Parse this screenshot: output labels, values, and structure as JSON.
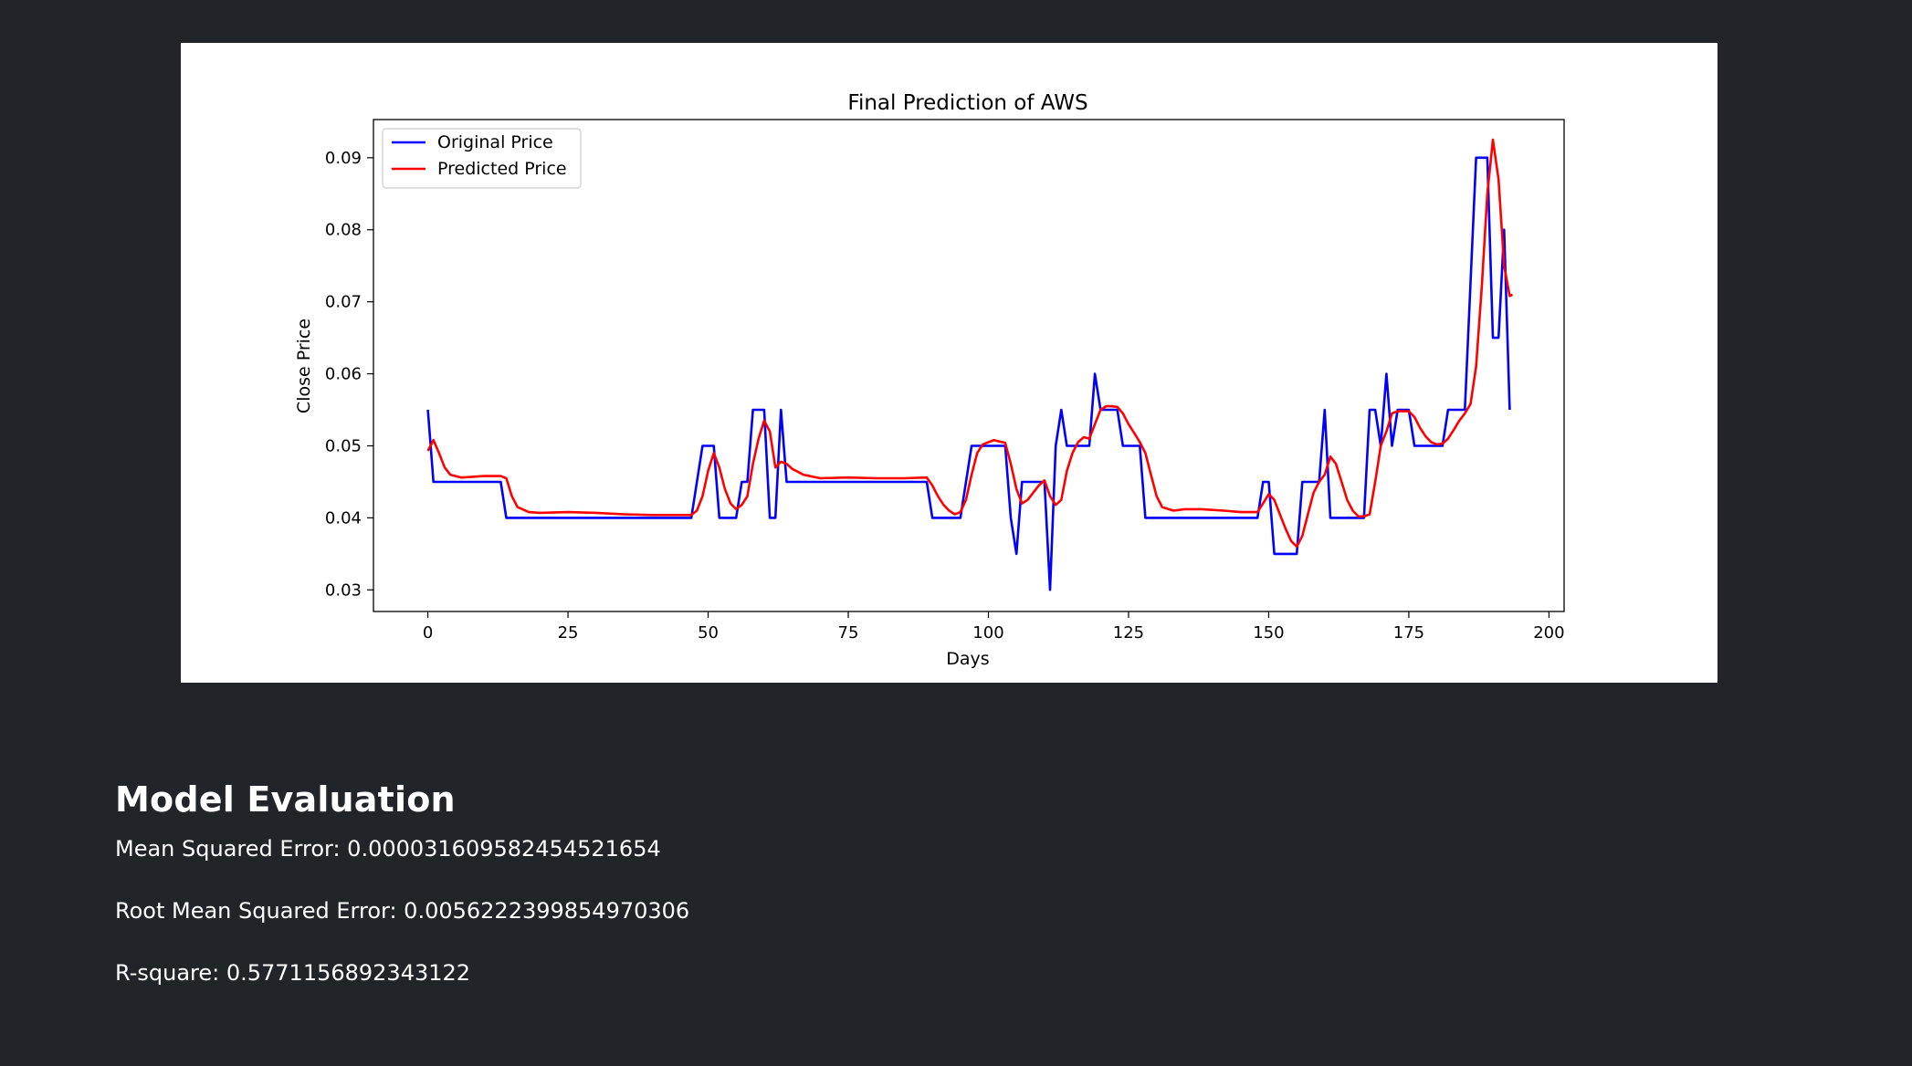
{
  "chart_data": {
    "type": "line",
    "title": "Final Prediction of AWS",
    "xlabel": "Days",
    "ylabel": "Close Price",
    "xlim": [
      -9.7,
      202.7
    ],
    "ylim": [
      0.027,
      0.0953
    ],
    "xticks": [
      0,
      25,
      50,
      75,
      100,
      125,
      150,
      175,
      200
    ],
    "yticks": [
      0.03,
      0.04,
      0.05,
      0.06,
      0.07,
      0.08,
      0.09
    ],
    "ytick_labels": [
      "0.03",
      "0.04",
      "0.05",
      "0.06",
      "0.07",
      "0.08",
      "0.09"
    ],
    "grid": false,
    "legend": "upper-left",
    "series": [
      {
        "name": "Original Price",
        "color": "#0000ff",
        "points": [
          [
            0,
            0.055
          ],
          [
            1,
            0.045
          ],
          [
            13,
            0.045
          ],
          [
            14,
            0.04
          ],
          [
            47,
            0.04
          ],
          [
            49,
            0.05
          ],
          [
            51,
            0.05
          ],
          [
            52,
            0.04
          ],
          [
            55,
            0.04
          ],
          [
            56,
            0.045
          ],
          [
            57,
            0.045
          ],
          [
            58,
            0.055
          ],
          [
            60,
            0.055
          ],
          [
            61,
            0.04
          ],
          [
            62,
            0.04
          ],
          [
            63,
            0.055
          ],
          [
            64,
            0.045
          ],
          [
            89,
            0.045
          ],
          [
            90,
            0.04
          ],
          [
            95,
            0.04
          ],
          [
            97,
            0.05
          ],
          [
            103,
            0.05
          ],
          [
            104,
            0.04
          ],
          [
            105,
            0.035
          ],
          [
            106,
            0.045
          ],
          [
            110,
            0.045
          ],
          [
            111,
            0.03
          ],
          [
            112,
            0.05
          ],
          [
            113,
            0.055
          ],
          [
            114,
            0.05
          ],
          [
            118,
            0.05
          ],
          [
            119,
            0.06
          ],
          [
            120,
            0.055
          ],
          [
            123,
            0.055
          ],
          [
            124,
            0.05
          ],
          [
            127,
            0.05
          ],
          [
            128,
            0.04
          ],
          [
            148,
            0.04
          ],
          [
            149,
            0.045
          ],
          [
            150,
            0.045
          ],
          [
            151,
            0.035
          ],
          [
            155,
            0.035
          ],
          [
            156,
            0.045
          ],
          [
            159,
            0.045
          ],
          [
            160,
            0.055
          ],
          [
            161,
            0.04
          ],
          [
            167,
            0.04
          ],
          [
            168,
            0.055
          ],
          [
            169,
            0.055
          ],
          [
            170,
            0.05
          ],
          [
            171,
            0.06
          ],
          [
            172,
            0.05
          ],
          [
            173,
            0.055
          ],
          [
            175,
            0.055
          ],
          [
            176,
            0.05
          ],
          [
            181,
            0.05
          ],
          [
            182,
            0.055
          ],
          [
            185,
            0.055
          ],
          [
            187,
            0.09
          ],
          [
            189,
            0.09
          ],
          [
            190,
            0.065
          ],
          [
            191,
            0.065
          ],
          [
            192,
            0.08
          ],
          [
            193,
            0.055
          ]
        ]
      },
      {
        "name": "Predicted Price",
        "color": "#ff0000",
        "points": [
          [
            0,
            0.0493
          ],
          [
            1,
            0.0508
          ],
          [
            2,
            0.049
          ],
          [
            3,
            0.047
          ],
          [
            4,
            0.046
          ],
          [
            6,
            0.0456
          ],
          [
            8,
            0.0457
          ],
          [
            10,
            0.0458
          ],
          [
            13,
            0.0458
          ],
          [
            14,
            0.0455
          ],
          [
            15,
            0.043
          ],
          [
            16,
            0.0415
          ],
          [
            18,
            0.0408
          ],
          [
            20,
            0.0407
          ],
          [
            25,
            0.0408
          ],
          [
            30,
            0.0407
          ],
          [
            35,
            0.0405
          ],
          [
            40,
            0.0404
          ],
          [
            47,
            0.0404
          ],
          [
            48,
            0.041
          ],
          [
            49,
            0.043
          ],
          [
            50,
            0.0465
          ],
          [
            51,
            0.049
          ],
          [
            52,
            0.047
          ],
          [
            53,
            0.044
          ],
          [
            54,
            0.042
          ],
          [
            55,
            0.0412
          ],
          [
            56,
            0.0418
          ],
          [
            57,
            0.043
          ],
          [
            58,
            0.0475
          ],
          [
            59,
            0.051
          ],
          [
            60,
            0.0535
          ],
          [
            61,
            0.052
          ],
          [
            62,
            0.047
          ],
          [
            63,
            0.0478
          ],
          [
            64,
            0.0475
          ],
          [
            65,
            0.0468
          ],
          [
            67,
            0.046
          ],
          [
            70,
            0.0455
          ],
          [
            75,
            0.0456
          ],
          [
            80,
            0.0455
          ],
          [
            85,
            0.0455
          ],
          [
            89,
            0.0456
          ],
          [
            90,
            0.0445
          ],
          [
            91,
            0.043
          ],
          [
            92,
            0.0418
          ],
          [
            93,
            0.041
          ],
          [
            94,
            0.0405
          ],
          [
            95,
            0.0408
          ],
          [
            96,
            0.0425
          ],
          [
            97,
            0.046
          ],
          [
            98,
            0.049
          ],
          [
            99,
            0.0502
          ],
          [
            100,
            0.0505
          ],
          [
            101,
            0.0508
          ],
          [
            102,
            0.0506
          ],
          [
            103,
            0.0504
          ],
          [
            104,
            0.0475
          ],
          [
            105,
            0.044
          ],
          [
            106,
            0.042
          ],
          [
            107,
            0.0425
          ],
          [
            108,
            0.0435
          ],
          [
            109,
            0.0445
          ],
          [
            110,
            0.0452
          ],
          [
            111,
            0.043
          ],
          [
            112,
            0.0418
          ],
          [
            113,
            0.0425
          ],
          [
            114,
            0.0465
          ],
          [
            115,
            0.049
          ],
          [
            116,
            0.0505
          ],
          [
            117,
            0.0512
          ],
          [
            118,
            0.051
          ],
          [
            119,
            0.053
          ],
          [
            120,
            0.055
          ],
          [
            121,
            0.0555
          ],
          [
            122,
            0.0555
          ],
          [
            123,
            0.0554
          ],
          [
            124,
            0.0545
          ],
          [
            125,
            0.053
          ],
          [
            126,
            0.0518
          ],
          [
            127,
            0.0505
          ],
          [
            128,
            0.049
          ],
          [
            129,
            0.046
          ],
          [
            130,
            0.043
          ],
          [
            131,
            0.0415
          ],
          [
            133,
            0.041
          ],
          [
            135,
            0.0412
          ],
          [
            138,
            0.0412
          ],
          [
            142,
            0.041
          ],
          [
            145,
            0.0408
          ],
          [
            148,
            0.0408
          ],
          [
            149,
            0.042
          ],
          [
            150,
            0.0433
          ],
          [
            151,
            0.0425
          ],
          [
            152,
            0.0405
          ],
          [
            153,
            0.0385
          ],
          [
            154,
            0.0368
          ],
          [
            155,
            0.036
          ],
          [
            156,
            0.0375
          ],
          [
            157,
            0.0405
          ],
          [
            158,
            0.0435
          ],
          [
            159,
            0.045
          ],
          [
            160,
            0.046
          ],
          [
            161,
            0.0485
          ],
          [
            162,
            0.0475
          ],
          [
            163,
            0.045
          ],
          [
            164,
            0.0425
          ],
          [
            165,
            0.041
          ],
          [
            166,
            0.0402
          ],
          [
            167,
            0.0402
          ],
          [
            168,
            0.0405
          ],
          [
            169,
            0.045
          ],
          [
            170,
            0.05
          ],
          [
            171,
            0.052
          ],
          [
            172,
            0.0545
          ],
          [
            173,
            0.0548
          ],
          [
            174,
            0.0548
          ],
          [
            175,
            0.0548
          ],
          [
            176,
            0.054
          ],
          [
            177,
            0.0525
          ],
          [
            178,
            0.0513
          ],
          [
            179,
            0.0505
          ],
          [
            180,
            0.0502
          ],
          [
            181,
            0.0503
          ],
          [
            182,
            0.051
          ],
          [
            183,
            0.0522
          ],
          [
            184,
            0.0535
          ],
          [
            185,
            0.0545
          ],
          [
            186,
            0.0558
          ],
          [
            187,
            0.061
          ],
          [
            188,
            0.072
          ],
          [
            189,
            0.085
          ],
          [
            190,
            0.0925
          ],
          [
            191,
            0.087
          ],
          [
            192,
            0.075
          ],
          [
            193,
            0.0708
          ],
          [
            193.5,
            0.071
          ]
        ]
      }
    ]
  },
  "evaluation": {
    "heading": "Model Evaluation",
    "mse": "Mean Squared Error: 0.000031609582454521654",
    "rmse": "Root Mean Squared Error: 0.0056222399854970306",
    "r2": "R-square: 0.5771156892343122"
  }
}
